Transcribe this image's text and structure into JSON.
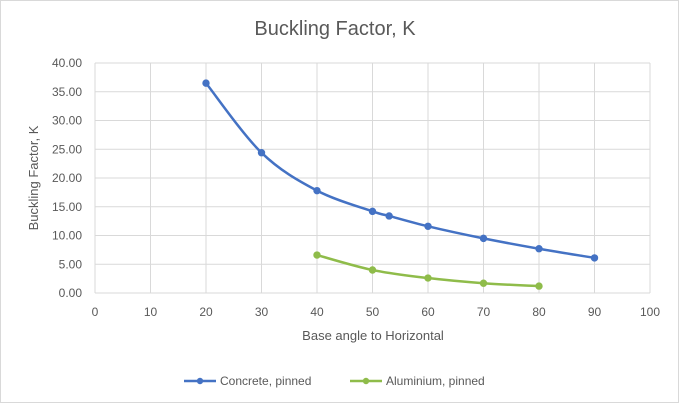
{
  "chart_data": {
    "type": "line",
    "title": "Buckling Factor, K",
    "xlabel": "Base angle to Horizontal",
    "ylabel": "Buckling Factor, K",
    "xlim": [
      0,
      100
    ],
    "ylim": [
      0,
      40
    ],
    "x_ticks": [
      "0",
      "10",
      "20",
      "30",
      "40",
      "50",
      "60",
      "70",
      "80",
      "90",
      "100"
    ],
    "y_ticks": [
      "0.00",
      "5.00",
      "10.00",
      "15.00",
      "20.00",
      "25.00",
      "30.00",
      "35.00",
      "40.00"
    ],
    "grid": true,
    "legend_position": "bottom",
    "series": [
      {
        "name": "Concrete, pinned",
        "color": "#4472c4",
        "x": [
          20,
          30,
          40,
          50,
          53,
          60,
          70,
          80,
          90
        ],
        "y": [
          36.5,
          24.4,
          17.8,
          14.2,
          13.4,
          11.6,
          9.5,
          7.7,
          6.1
        ]
      },
      {
        "name": "Aluminium, pinned",
        "color": "#8fbc4a",
        "x": [
          40,
          50,
          60,
          70,
          80
        ],
        "y": [
          6.6,
          4.0,
          2.6,
          1.7,
          1.2
        ]
      }
    ]
  }
}
